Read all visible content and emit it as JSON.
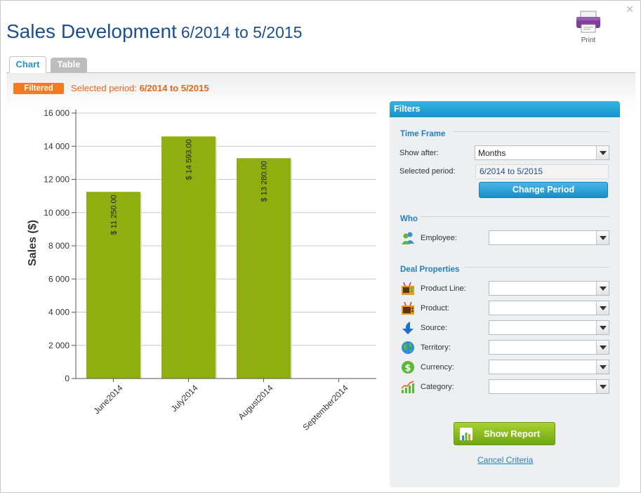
{
  "window": {
    "title_main": "Sales Development",
    "title_range": "6/2014 to 5/2015",
    "close_glyph": "×",
    "print_label": "Print"
  },
  "tabs": [
    {
      "label": "Chart",
      "active": true
    },
    {
      "label": "Table",
      "active": false
    }
  ],
  "filterbar": {
    "badge": "Filtered",
    "selected_label": "Selected period:",
    "selected_value": "6/2014 to 5/2015"
  },
  "chart_data": {
    "type": "bar",
    "categories": [
      "June2014",
      "July2014",
      "August2014",
      "September2014"
    ],
    "values": [
      11250,
      14593,
      13280,
      null
    ],
    "data_labels": [
      "$ 11 250.00",
      "$ 14 593.00",
      "$ 13 280.00",
      ""
    ],
    "ylabel": "Sales ($)",
    "ylim": [
      0,
      16000
    ],
    "yticks": [
      0,
      2000,
      4000,
      6000,
      8000,
      10000,
      12000,
      14000,
      16000
    ],
    "ytick_labels": [
      "0",
      "2 000",
      "4 000",
      "6 000",
      "8 000",
      "10 000",
      "12 000",
      "14 000",
      "16 000"
    ],
    "grid": true,
    "bar_color": "#8fae0f"
  },
  "filters": {
    "header": "Filters",
    "time_frame": {
      "title": "Time Frame",
      "show_after_label": "Show after:",
      "show_after_value": "Months",
      "selected_period_label": "Selected period:",
      "selected_period_value": "6/2014 to 5/2015",
      "change_button": "Change Period"
    },
    "who": {
      "title": "Who",
      "employee_label": "Employee:",
      "employee_value": ""
    },
    "deal": {
      "title": "Deal Properties",
      "fields": [
        {
          "label": "Product Line:",
          "icon": "product-line-icon",
          "value": ""
        },
        {
          "label": "Product:",
          "icon": "product-icon",
          "value": ""
        },
        {
          "label": "Source:",
          "icon": "source-arrow-icon",
          "value": ""
        },
        {
          "label": "Territory:",
          "icon": "globe-icon",
          "value": ""
        },
        {
          "label": "Currency:",
          "icon": "dollar-icon",
          "value": ""
        },
        {
          "label": "Category:",
          "icon": "category-icon",
          "value": ""
        }
      ]
    },
    "show_report": "Show Report",
    "cancel": "Cancel Criteria"
  },
  "colors": {
    "accent_blue": "#1f7fc1",
    "orange": "#f47b20",
    "green": "#8fae0f"
  }
}
